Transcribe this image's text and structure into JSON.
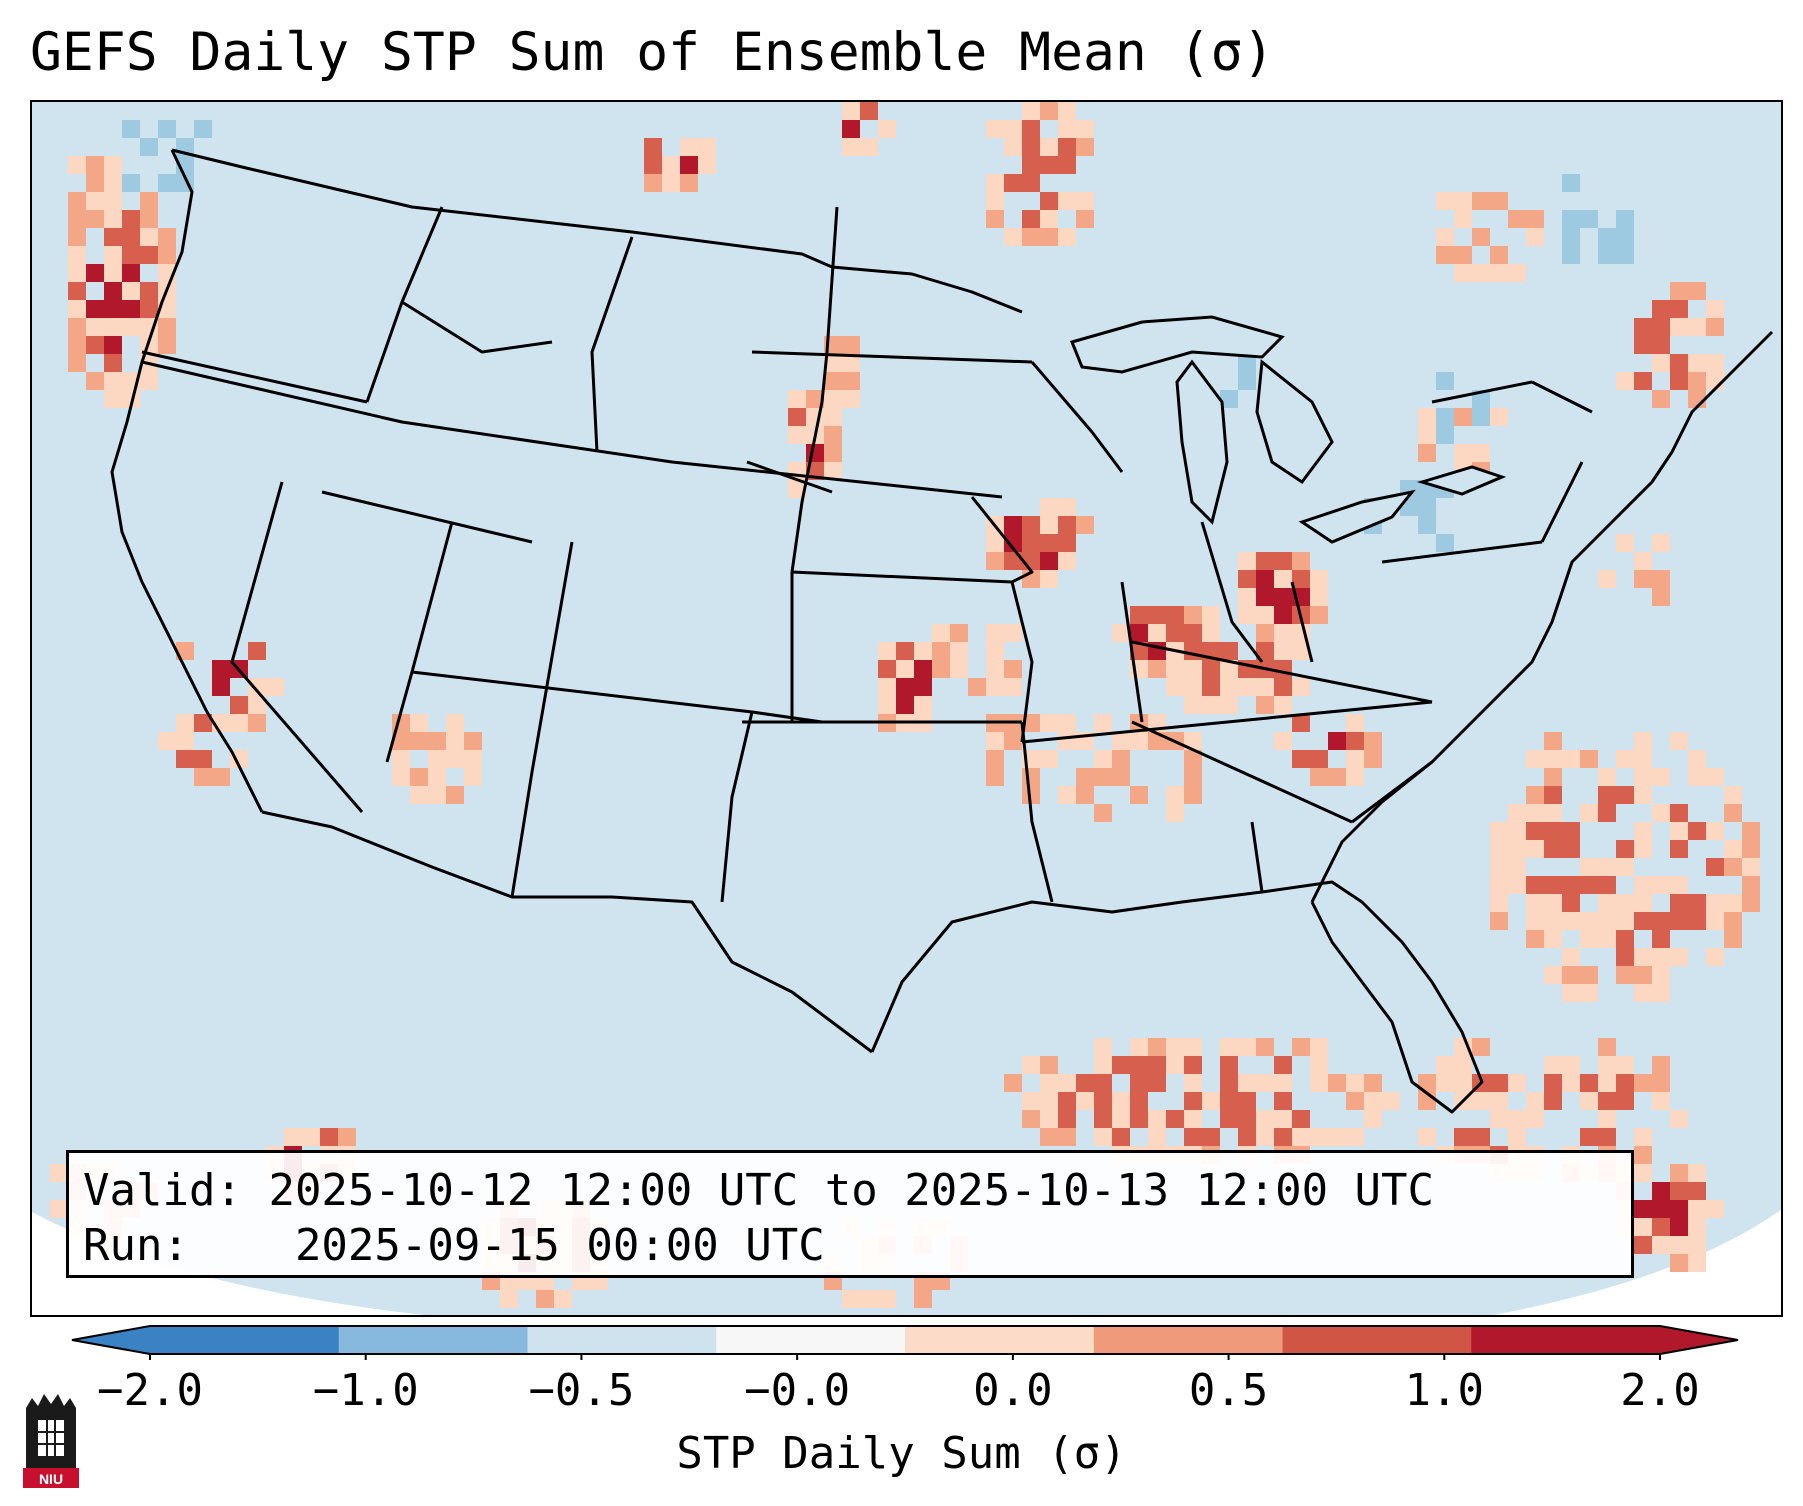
{
  "title": "GEFS Daily STP Sum of Ensemble Mean (σ)",
  "info": {
    "valid_label": "Valid:",
    "valid_value": "2025-10-12 12:00 UTC to 2025-10-13 12:00 UTC",
    "run_label": "Run:",
    "run_value": "2025-09-15 00:00 UTC"
  },
  "colorbar": {
    "label": "STP Daily Sum (σ)",
    "ticks": [
      "−2.0",
      "−1.0",
      "−0.5",
      "−0.0",
      "0.0",
      "0.5",
      "1.0",
      "2.0"
    ],
    "colors": [
      "#3b82c4",
      "#86b9dd",
      "#cfe3ef",
      "#f7f7f7",
      "#fcdcc9",
      "#f09a7c",
      "#d05545",
      "#b2182b"
    ],
    "extend": "both"
  },
  "logo": {
    "text": "NIU"
  },
  "colors": {
    "background_field": "#d0e4f0",
    "light_positive": "#fcd7c2",
    "medium_positive": "#f4a787",
    "strong_positive": "#d6604d",
    "max_positive": "#b2182b",
    "light_negative": "#9ecae1",
    "border_line": "#000000"
  }
}
